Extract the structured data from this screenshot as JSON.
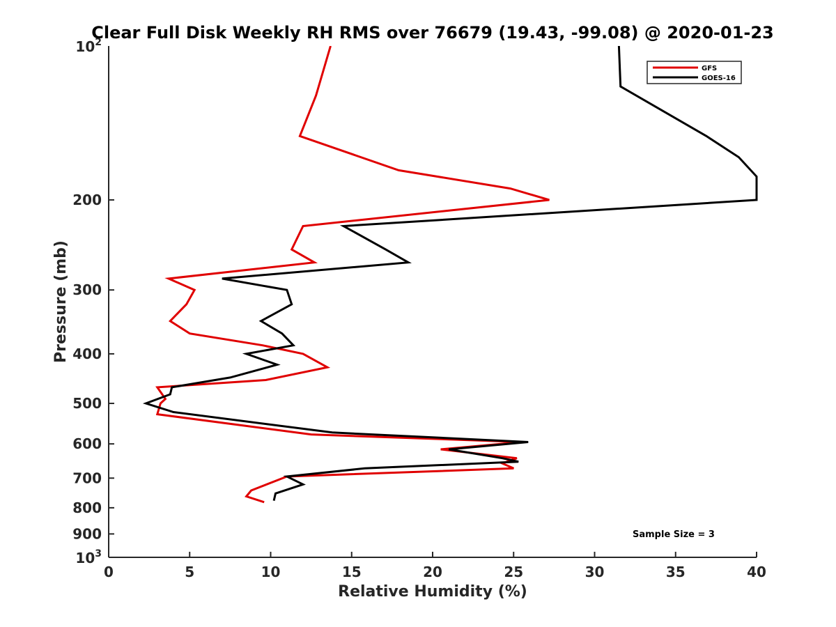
{
  "chart_data": {
    "type": "line",
    "title": "Clear Full Disk Weekly RH RMS over 76679 (19.43, -99.08) @ 2020-01-23",
    "xlabel": "Relative Humidity (%)",
    "ylabel": "Pressure (mb)",
    "xlim": [
      0,
      40
    ],
    "ylim": [
      100,
      1000
    ],
    "yscale": "log",
    "yreversed": true,
    "grid": false,
    "legend_position": "top-right",
    "x_ticks": [
      "0",
      "5",
      "10",
      "15",
      "20",
      "25",
      "30",
      "35",
      "40"
    ],
    "x_tick_values": [
      0,
      5,
      10,
      15,
      20,
      25,
      30,
      35,
      40
    ],
    "y_ticks": [
      {
        "value": 200,
        "label": "200"
      },
      {
        "value": 300,
        "label": "300"
      },
      {
        "value": 400,
        "label": "400"
      },
      {
        "value": 500,
        "label": "500"
      },
      {
        "value": 600,
        "label": "600"
      },
      {
        "value": 700,
        "label": "700"
      },
      {
        "value": 800,
        "label": "800"
      },
      {
        "value": 900,
        "label": "900"
      }
    ],
    "y_ticks_power": [
      {
        "value": 100,
        "base": "10",
        "exp": "2"
      },
      {
        "value": 1000,
        "base": "10",
        "exp": "3"
      }
    ],
    "annotation": "Sample Size = 3",
    "series": [
      {
        "name": "GFS",
        "color": "#e00000",
        "points": [
          [
            13.7,
            100
          ],
          [
            12.8,
            125
          ],
          [
            11.8,
            150
          ],
          [
            17.9,
            175
          ],
          [
            24.8,
            190
          ],
          [
            27.2,
            200
          ],
          [
            12.0,
            225
          ],
          [
            11.3,
            250
          ],
          [
            12.7,
            265
          ],
          [
            3.7,
            285
          ],
          [
            5.3,
            300
          ],
          [
            4.8,
            320
          ],
          [
            3.8,
            345
          ],
          [
            5.0,
            365
          ],
          [
            9.5,
            385
          ],
          [
            12.0,
            400
          ],
          [
            13.5,
            425
          ],
          [
            9.7,
            450
          ],
          [
            3.0,
            465
          ],
          [
            3.5,
            490
          ],
          [
            3.2,
            500
          ],
          [
            3.0,
            525
          ],
          [
            12.5,
            575
          ],
          [
            25.5,
            595
          ],
          [
            20.5,
            615
          ],
          [
            25.2,
            640
          ],
          [
            24.3,
            655
          ],
          [
            25.0,
            670
          ],
          [
            11.0,
            695
          ],
          [
            8.8,
            740
          ],
          [
            8.5,
            760
          ],
          [
            9.6,
            780
          ]
        ]
      },
      {
        "name": "GOES-16",
        "color": "#000000",
        "points": [
          [
            31.5,
            100
          ],
          [
            31.6,
            120
          ],
          [
            36.9,
            150
          ],
          [
            38.9,
            165
          ],
          [
            40.0,
            180
          ],
          [
            40.0,
            195
          ],
          [
            40.0,
            200
          ],
          [
            14.5,
            225
          ],
          [
            17.1,
            250
          ],
          [
            18.5,
            265
          ],
          [
            7.0,
            285
          ],
          [
            11.0,
            300
          ],
          [
            11.3,
            320
          ],
          [
            9.4,
            345
          ],
          [
            10.7,
            365
          ],
          [
            11.4,
            385
          ],
          [
            8.5,
            400
          ],
          [
            10.4,
            420
          ],
          [
            7.5,
            445
          ],
          [
            3.9,
            465
          ],
          [
            3.8,
            480
          ],
          [
            2.3,
            500
          ],
          [
            4.0,
            520
          ],
          [
            13.8,
            570
          ],
          [
            25.9,
            595
          ],
          [
            21.0,
            615
          ],
          [
            24.3,
            640
          ],
          [
            25.3,
            650
          ],
          [
            15.8,
            670
          ],
          [
            11.0,
            695
          ],
          [
            12.0,
            720
          ],
          [
            10.3,
            750
          ],
          [
            10.2,
            775
          ]
        ]
      }
    ]
  }
}
